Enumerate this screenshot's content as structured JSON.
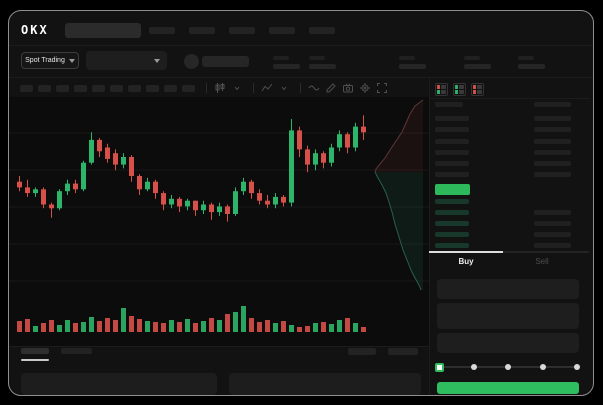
{
  "header": {
    "logo_text": "OKX",
    "nav_placeholder_count": 5
  },
  "ticker": {
    "market_type": "Spot Trading",
    "stat_pair_count": 5
  },
  "toolbar": {
    "interval_placeholder_count": 10,
    "tools": [
      "chart-style",
      "indicators",
      "line-tool",
      "draw-tool",
      "camera",
      "settings",
      "fullscreen"
    ]
  },
  "chart_data": {
    "type": "candlestick",
    "note_units": "normalized price 0-100 (no axis labels visible in UI)",
    "grid": "horizontal-faint",
    "ylim": [
      20,
      100
    ],
    "candles_ohlc": [
      [
        57,
        60,
        52,
        54
      ],
      [
        54,
        58,
        49,
        51
      ],
      [
        51,
        54,
        49,
        53
      ],
      [
        53,
        54,
        43,
        45
      ],
      [
        45,
        46,
        38,
        43
      ],
      [
        43,
        53,
        42,
        52
      ],
      [
        52,
        58,
        50,
        56
      ],
      [
        56,
        58,
        51,
        53
      ],
      [
        53,
        68,
        52,
        67
      ],
      [
        67,
        83,
        66,
        79
      ],
      [
        79,
        80,
        70,
        73
      ],
      [
        75,
        77,
        67,
        69
      ],
      [
        72,
        74,
        63,
        66
      ],
      [
        66,
        72,
        64,
        70
      ],
      [
        70,
        71,
        57,
        60
      ],
      [
        60,
        61,
        50,
        53
      ],
      [
        53,
        59,
        52,
        57
      ],
      [
        57,
        58,
        48,
        51
      ],
      [
        51,
        52,
        42,
        45
      ],
      [
        45,
        50,
        43,
        48
      ],
      [
        48,
        49,
        41,
        44
      ],
      [
        44,
        48,
        42,
        47
      ],
      [
        47,
        47,
        39,
        42
      ],
      [
        42,
        47,
        40,
        45
      ],
      [
        45,
        46,
        37,
        41
      ],
      [
        41,
        46,
        39,
        44
      ],
      [
        44,
        45,
        36,
        40
      ],
      [
        40,
        54,
        39,
        52
      ],
      [
        52,
        59,
        50,
        57
      ],
      [
        57,
        58,
        48,
        51
      ],
      [
        51,
        53,
        45,
        47
      ],
      [
        47,
        50,
        43,
        45
      ],
      [
        45,
        51,
        43,
        49
      ],
      [
        49,
        50,
        44,
        46
      ],
      [
        46,
        90,
        44,
        84
      ],
      [
        84,
        86,
        70,
        74
      ],
      [
        74,
        76,
        62,
        66
      ],
      [
        66,
        74,
        63,
        72
      ],
      [
        72,
        73,
        64,
        67
      ],
      [
        67,
        77,
        65,
        75
      ],
      [
        75,
        84,
        73,
        82
      ],
      [
        82,
        83,
        72,
        75
      ],
      [
        75,
        88,
        73,
        86
      ],
      [
        86,
        92,
        79,
        83
      ]
    ],
    "volume": [
      11,
      13,
      6,
      9,
      12,
      7,
      12,
      9,
      10,
      15,
      11,
      14,
      12,
      24,
      16,
      13,
      11,
      10,
      9,
      12,
      10,
      13,
      9,
      11,
      14,
      12,
      18,
      20,
      26,
      14,
      10,
      12,
      9,
      11,
      7,
      5,
      6,
      9,
      10,
      8,
      12,
      14,
      9,
      5
    ],
    "depth": {
      "asks_line": [
        [
          414,
          3
        ],
        [
          406,
          9
        ],
        [
          401,
          17
        ],
        [
          397,
          26
        ],
        [
          393,
          35
        ],
        [
          387,
          44
        ],
        [
          381,
          53
        ],
        [
          376,
          61
        ],
        [
          371,
          67
        ],
        [
          367,
          72
        ],
        [
          366,
          75
        ]
      ],
      "bids_line": [
        [
          366,
          75
        ],
        [
          369,
          81
        ],
        [
          373,
          88
        ],
        [
          377,
          96
        ],
        [
          380,
          105
        ],
        [
          383,
          115
        ],
        [
          386,
          127
        ],
        [
          390,
          140
        ],
        [
          394,
          153
        ],
        [
          398,
          163
        ],
        [
          402,
          173
        ],
        [
          406,
          181
        ],
        [
          410,
          188
        ],
        [
          412,
          193
        ]
      ]
    }
  },
  "orderbook": {
    "view_icons": [
      {
        "name": "combined-book-icon",
        "rows": [
          "down",
          "down",
          "up",
          "up"
        ]
      },
      {
        "name": "bids-book-icon",
        "rows": [
          "up",
          "up",
          "up",
          "up"
        ]
      },
      {
        "name": "asks-book-icon",
        "rows": [
          "down",
          "down",
          "down",
          "down"
        ]
      }
    ],
    "ask_row_count": 6,
    "bid_row_count": 5,
    "has_last_price_highlight": true
  },
  "trade_form": {
    "tabs": [
      {
        "label": "Buy",
        "active": true
      },
      {
        "label": "Sell",
        "active": false
      }
    ],
    "field_count": 3,
    "slider": {
      "stops": 5,
      "value_index": 0
    }
  },
  "bottom_panel": {
    "tab_count": 2,
    "action_count": 2,
    "field_count": 2
  },
  "colors": {
    "up": "#2fb56b",
    "down": "#d8504a",
    "accent_green": "#2ebd5f",
    "last_price_bg": "#2eb85c",
    "bid_row_tint": "#17382a",
    "ask_depth_line": "#5f3636",
    "bid_depth_line": "#2a5f4a",
    "ask_depth_fill": "rgba(150,60,60,0.12)",
    "bid_depth_fill": "rgba(45,140,95,0.12)"
  }
}
